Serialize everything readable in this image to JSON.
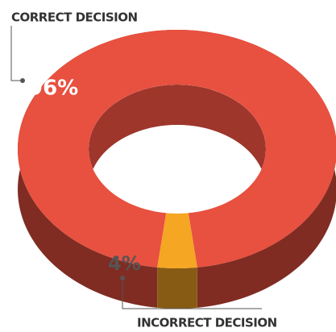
{
  "chart_data": {
    "type": "donut3d",
    "categories": [
      "CORRECT DECISION",
      "INCORRECT DECISION"
    ],
    "values": [
      96,
      4
    ],
    "value_labels": [
      "96%",
      "4%"
    ],
    "colors": [
      "#e8503f",
      "#f5a623"
    ]
  }
}
